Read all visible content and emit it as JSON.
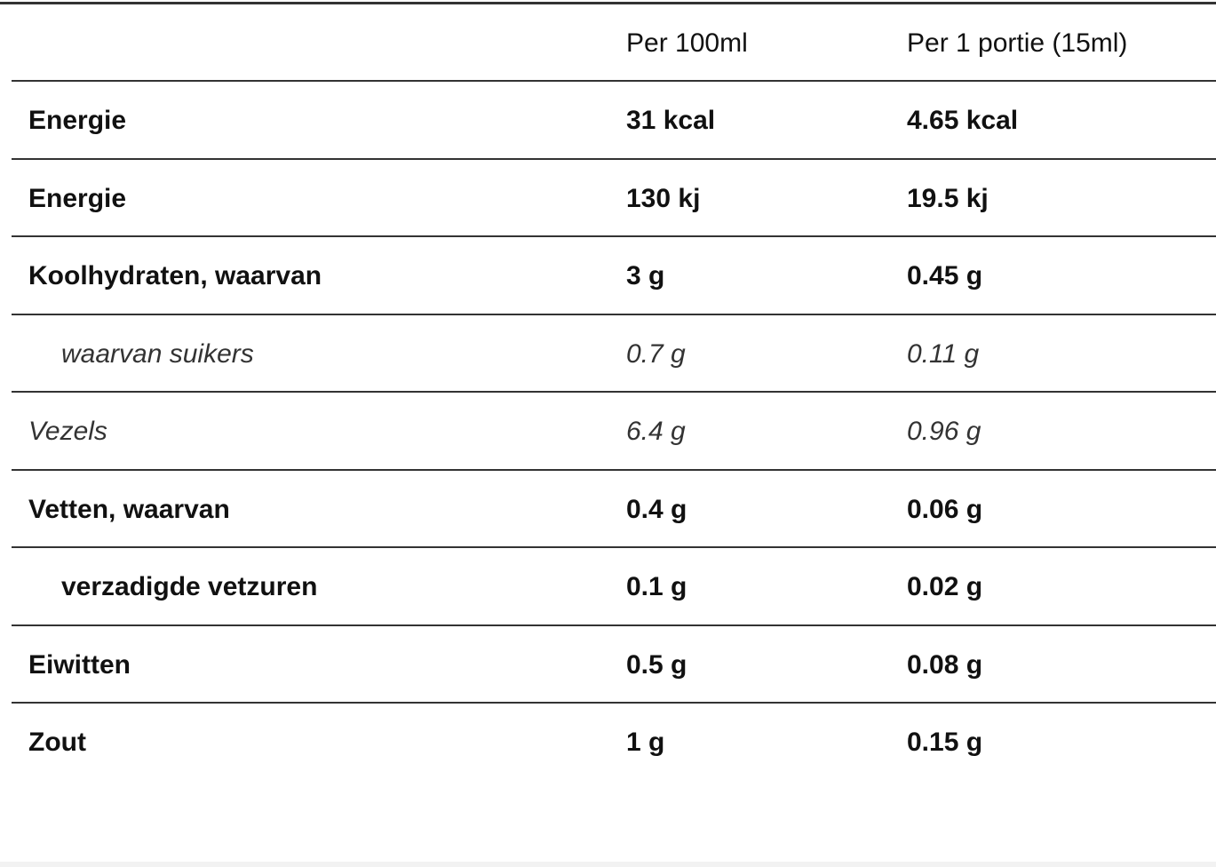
{
  "table": {
    "header": [
      "Per 100ml",
      "Per 1 portie (15ml)"
    ],
    "rows": [
      [
        "Energie",
        "31 kcal",
        "4.65 kcal"
      ],
      [
        "Energie",
        "130 kj",
        "19.5 kj"
      ],
      [
        "Koolhydraten, waarvan",
        "3 g",
        "0.45 g"
      ],
      [
        "waarvan suikers",
        "0.7 g",
        "0.11 g"
      ],
      [
        "Vezels",
        "6.4 g",
        "0.96 g"
      ],
      [
        "Vetten, waarvan",
        "0.4 g",
        "0.06 g"
      ],
      [
        "verzadigde vetzuren",
        "0.1 g",
        "0.02 g"
      ],
      [
        "Eiwitten",
        "0.5 g",
        "0.08 g"
      ],
      [
        "Zout",
        "1 g",
        "0.15 g"
      ]
    ]
  }
}
